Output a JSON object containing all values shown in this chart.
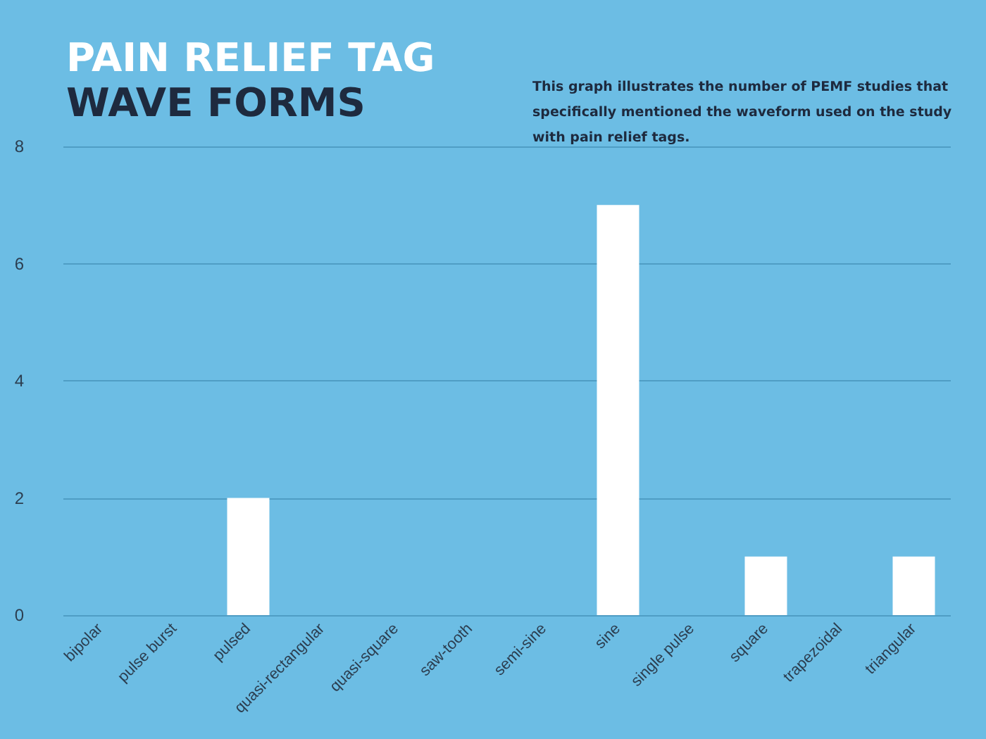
{
  "chart_data": {
    "type": "bar",
    "title": "PAIN RELIEF TAG\nWAVE FORMS",
    "annotations": [
      "This graph illustrates the number of PEMF studies that specifically mentioned the waveform used on the study with pain relief tags."
    ],
    "categories": [
      "bipolar",
      "pulse burst",
      "pulsed",
      "quasi-rectangular",
      "quasi-square",
      "saw-tooth",
      "semi-sine",
      "sine",
      "single pulse",
      "square",
      "trapezoidal",
      "triangular"
    ],
    "values": [
      0,
      0,
      2,
      0,
      0,
      0,
      0,
      7,
      0,
      1,
      0,
      1
    ],
    "color": "#ffffff",
    "ylim": [
      0,
      8
    ],
    "yticks": [
      0,
      2,
      4,
      6,
      8
    ],
    "grid": "y"
  }
}
